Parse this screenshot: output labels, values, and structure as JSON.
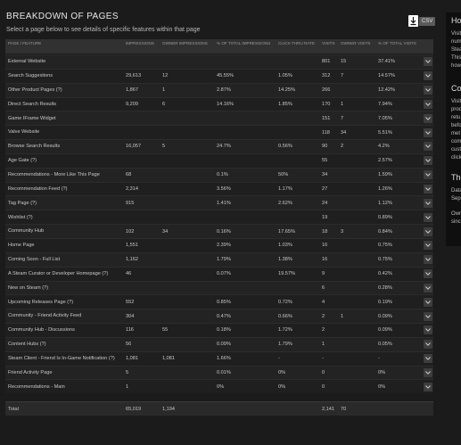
{
  "header": {
    "title": "BREAKDOWN OF PAGES",
    "subtitle": "Select a page below to see details of specific features within that page",
    "csv_label": "CSV"
  },
  "columns": [
    "PAGE / FEATURE",
    "IMPRESSIONS",
    "OWNER IMPRESSIONS",
    "% OF TOTAL IMPRESSIONS",
    "CLICK-THRU RATE",
    "VISITS",
    "OWNER VISITS",
    "% OF TOTAL VISITS"
  ],
  "rows": [
    {
      "feature": "External Website",
      "impressions": "",
      "owner_impressions": "",
      "pct_impressions": "",
      "ctr": "",
      "visits": "801",
      "owner_visits": "15",
      "pct_visits": "37.41%"
    },
    {
      "feature": "Search Suggestions",
      "impressions": "29,613",
      "owner_impressions": "12",
      "pct_impressions": "45.55%",
      "ctr": "1.05%",
      "visits": "312",
      "owner_visits": "7",
      "pct_visits": "14.57%"
    },
    {
      "feature": "Other Product Pages (?)",
      "impressions": "1,867",
      "owner_impressions": "1",
      "pct_impressions": "2.87%",
      "ctr": "14.25%",
      "visits": "266",
      "owner_visits": "",
      "pct_visits": "12.42%"
    },
    {
      "feature": "Direct Search Results",
      "impressions": "9,209",
      "owner_impressions": "6",
      "pct_impressions": "14.16%",
      "ctr": "1.85%",
      "visits": "170",
      "owner_visits": "1",
      "pct_visits": "7.94%"
    },
    {
      "feature": "Game IFrame Widget",
      "impressions": "",
      "owner_impressions": "",
      "pct_impressions": "",
      "ctr": "",
      "visits": "151",
      "owner_visits": "7",
      "pct_visits": "7.05%"
    },
    {
      "feature": "Valve Website",
      "impressions": "",
      "owner_impressions": "",
      "pct_impressions": "",
      "ctr": "",
      "visits": "118",
      "owner_visits": "34",
      "pct_visits": "5.51%"
    },
    {
      "feature": "Browse Search Results",
      "impressions": "16,057",
      "owner_impressions": "5",
      "pct_impressions": "24.7%",
      "ctr": "0.56%",
      "visits": "90",
      "owner_visits": "2",
      "pct_visits": "4.2%"
    },
    {
      "feature": "Age Gate (?)",
      "impressions": "",
      "owner_impressions": "",
      "pct_impressions": "",
      "ctr": "",
      "visits": "55",
      "owner_visits": "",
      "pct_visits": "2.57%"
    },
    {
      "feature": "Recommendations - More Like This Page",
      "impressions": "68",
      "owner_impressions": "",
      "pct_impressions": "0.1%",
      "ctr": "50%",
      "visits": "34",
      "owner_visits": "",
      "pct_visits": "1.59%"
    },
    {
      "feature": "Recommendation Feed (?)",
      "impressions": "2,314",
      "owner_impressions": "",
      "pct_impressions": "3.56%",
      "ctr": "1.17%",
      "visits": "27",
      "owner_visits": "",
      "pct_visits": "1.26%"
    },
    {
      "feature": "Tag Page (?)",
      "impressions": "915",
      "owner_impressions": "",
      "pct_impressions": "1.41%",
      "ctr": "2.62%",
      "visits": "24",
      "owner_visits": "",
      "pct_visits": "1.12%"
    },
    {
      "feature": "Wishlist (?)",
      "impressions": "",
      "owner_impressions": "",
      "pct_impressions": "",
      "ctr": "",
      "visits": "19",
      "owner_visits": "",
      "pct_visits": "0.89%"
    },
    {
      "feature": "Community Hub",
      "impressions": "102",
      "owner_impressions": "34",
      "pct_impressions": "0.16%",
      "ctr": "17.65%",
      "visits": "18",
      "owner_visits": "3",
      "pct_visits": "0.84%"
    },
    {
      "feature": "Home Page",
      "impressions": "1,551",
      "owner_impressions": "",
      "pct_impressions": "2.39%",
      "ctr": "1.03%",
      "visits": "16",
      "owner_visits": "",
      "pct_visits": "0.75%"
    },
    {
      "feature": "Coming Soon - Full List",
      "impressions": "1,162",
      "owner_impressions": "",
      "pct_impressions": "1.79%",
      "ctr": "1.38%",
      "visits": "16",
      "owner_visits": "",
      "pct_visits": "0.75%"
    },
    {
      "feature": "A Steam Curator or Developer Homepage (?)",
      "impressions": "46",
      "owner_impressions": "",
      "pct_impressions": "0.07%",
      "ctr": "19.57%",
      "visits": "9",
      "owner_visits": "",
      "pct_visits": "0.42%"
    },
    {
      "feature": "New on Steam (?)",
      "impressions": "",
      "owner_impressions": "",
      "pct_impressions": "",
      "ctr": "",
      "visits": "6",
      "owner_visits": "",
      "pct_visits": "0.28%"
    },
    {
      "feature": "Upcoming Releases Page (?)",
      "impressions": "552",
      "owner_impressions": "",
      "pct_impressions": "0.85%",
      "ctr": "0.72%",
      "visits": "4",
      "owner_visits": "",
      "pct_visits": "0.19%"
    },
    {
      "feature": "Community - Friend Activity Feed",
      "impressions": "304",
      "owner_impressions": "",
      "pct_impressions": "0.47%",
      "ctr": "0.66%",
      "visits": "2",
      "owner_visits": "1",
      "pct_visits": "0.09%"
    },
    {
      "feature": "Community Hub - Discussions",
      "impressions": "116",
      "owner_impressions": "55",
      "pct_impressions": "0.18%",
      "ctr": "1.72%",
      "visits": "2",
      "owner_visits": "",
      "pct_visits": "0.09%"
    },
    {
      "feature": "Content Hubs (?)",
      "impressions": "56",
      "owner_impressions": "",
      "pct_impressions": "0.09%",
      "ctr": "1.79%",
      "visits": "1",
      "owner_visits": "",
      "pct_visits": "0.05%"
    },
    {
      "feature": "Steam Client - Friend Is In-Game Notification (?)",
      "impressions": "1,081",
      "owner_impressions": "1,081",
      "pct_impressions": "1.66%",
      "ctr": "-",
      "visits": "-",
      "owner_visits": "",
      "pct_visits": "-"
    },
    {
      "feature": "Friend Activity Page",
      "impressions": "5",
      "owner_impressions": "",
      "pct_impressions": "0.01%",
      "ctr": "0%",
      "visits": "0",
      "owner_visits": "",
      "pct_visits": "0%"
    },
    {
      "feature": "Recommendations - Main",
      "impressions": "1",
      "owner_impressions": "",
      "pct_impressions": "0%",
      "ctr": "0%",
      "visits": "0",
      "owner_visits": "",
      "pct_visits": "0%"
    }
  ],
  "total": {
    "feature": "Total",
    "impressions": "65,019",
    "owner_impressions": "1,194",
    "visits": "2,141",
    "owner_visits": "70"
  },
  "side_panel": {
    "heading_1": "Ho",
    "text_1": [
      "Visit",
      "num",
      "Stea",
      "This",
      "how"
    ],
    "heading_2": "Co",
    "text_2": [
      "Visit",
      "prod",
      "retu",
      "befo",
      "met",
      "com",
      "cust",
      "click"
    ],
    "heading_3": "The",
    "text_3": [
      "Data",
      "Sep"
    ],
    "text_4": [
      "Own",
      "sinc"
    ]
  }
}
